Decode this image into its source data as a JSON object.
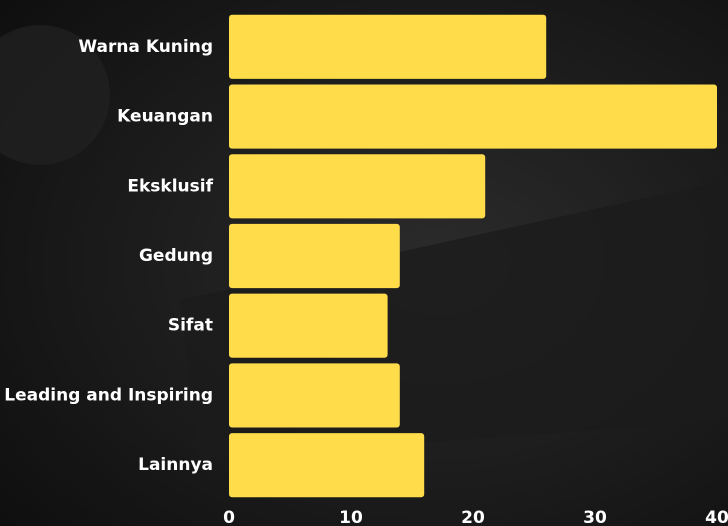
{
  "chart_data": {
    "type": "bar",
    "orientation": "horizontal",
    "categories": [
      "Warna Kuning",
      "Keuangan",
      "Eksklusif",
      "Gedung",
      "Sifat",
      "Leading and Inspiring",
      "Lainnya"
    ],
    "values": [
      26,
      40,
      21,
      14,
      13,
      14,
      16
    ],
    "color": "#ffdc4a",
    "xlim": [
      0,
      40
    ],
    "xticks": [
      0,
      10,
      20,
      30,
      40
    ],
    "grid": false
  }
}
